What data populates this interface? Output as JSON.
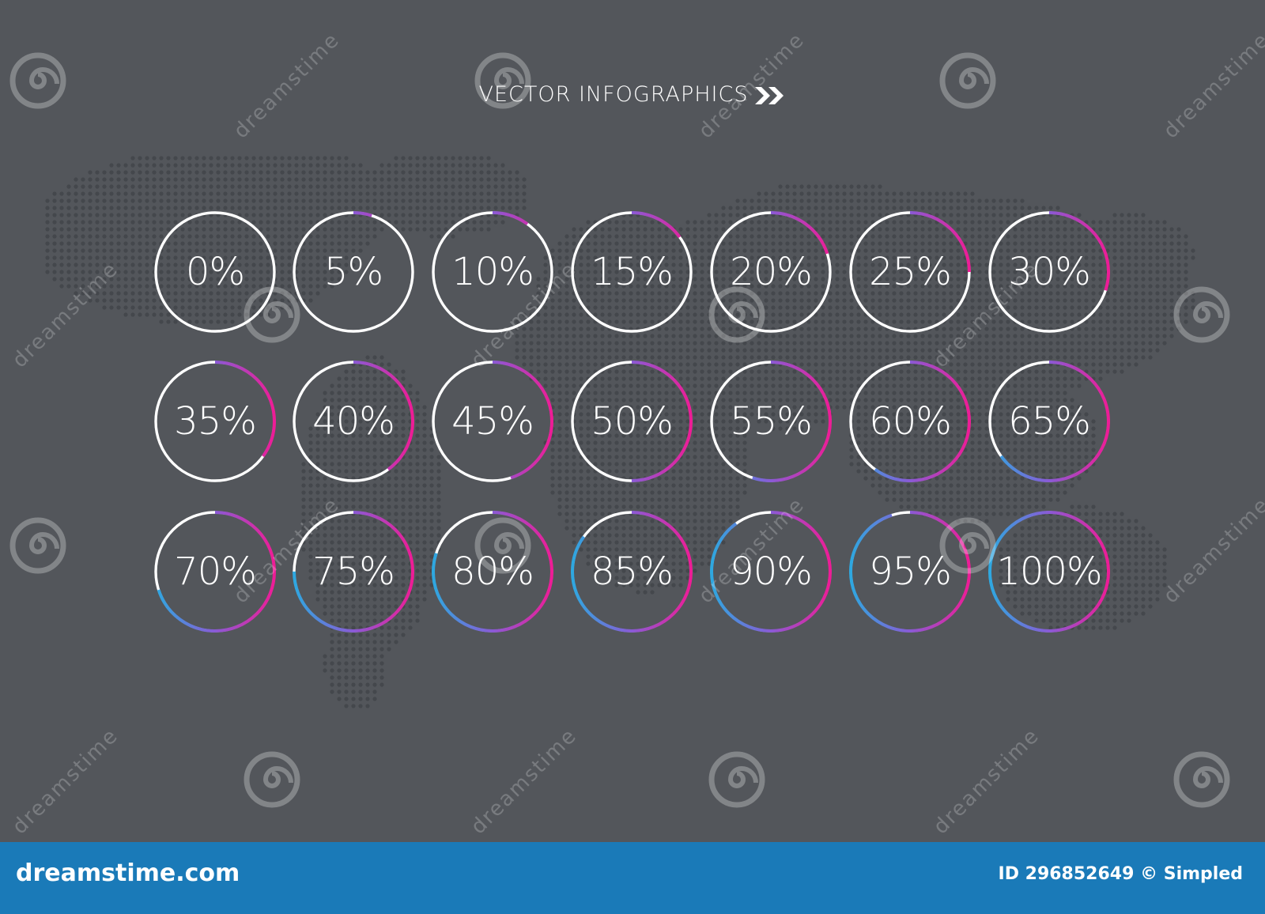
{
  "title": "VECTOR INFOGRAPHICS",
  "title_icon": "double-chevron-right-icon",
  "colors": {
    "background": "#53565b",
    "ring_track": "#ffffff",
    "gradient_start": "#2ea8e0",
    "gradient_mid": "#8a5ad6",
    "gradient_end": "#ee1c96",
    "footer": "#1a7ab8",
    "map_dots": "#44474c"
  },
  "circles": [
    {
      "label": "0%",
      "value": 0
    },
    {
      "label": "5%",
      "value": 5
    },
    {
      "label": "10%",
      "value": 10
    },
    {
      "label": "15%",
      "value": 15
    },
    {
      "label": "20%",
      "value": 20
    },
    {
      "label": "25%",
      "value": 25
    },
    {
      "label": "30%",
      "value": 30
    },
    {
      "label": "35%",
      "value": 35
    },
    {
      "label": "40%",
      "value": 40
    },
    {
      "label": "45%",
      "value": 45
    },
    {
      "label": "50%",
      "value": 50
    },
    {
      "label": "55%",
      "value": 55
    },
    {
      "label": "60%",
      "value": 60
    },
    {
      "label": "65%",
      "value": 65
    },
    {
      "label": "70%",
      "value": 70
    },
    {
      "label": "75%",
      "value": 75
    },
    {
      "label": "80%",
      "value": 80
    },
    {
      "label": "85%",
      "value": 85
    },
    {
      "label": "90%",
      "value": 90
    },
    {
      "label": "95%",
      "value": 95
    },
    {
      "label": "100%",
      "value": 100
    }
  ],
  "watermark": {
    "text": "dreamstime",
    "icon": "dreamstime-spiral-icon"
  },
  "footer": {
    "brand": "dreamstime.com",
    "id_text": "ID 296852649 © Simpled"
  }
}
